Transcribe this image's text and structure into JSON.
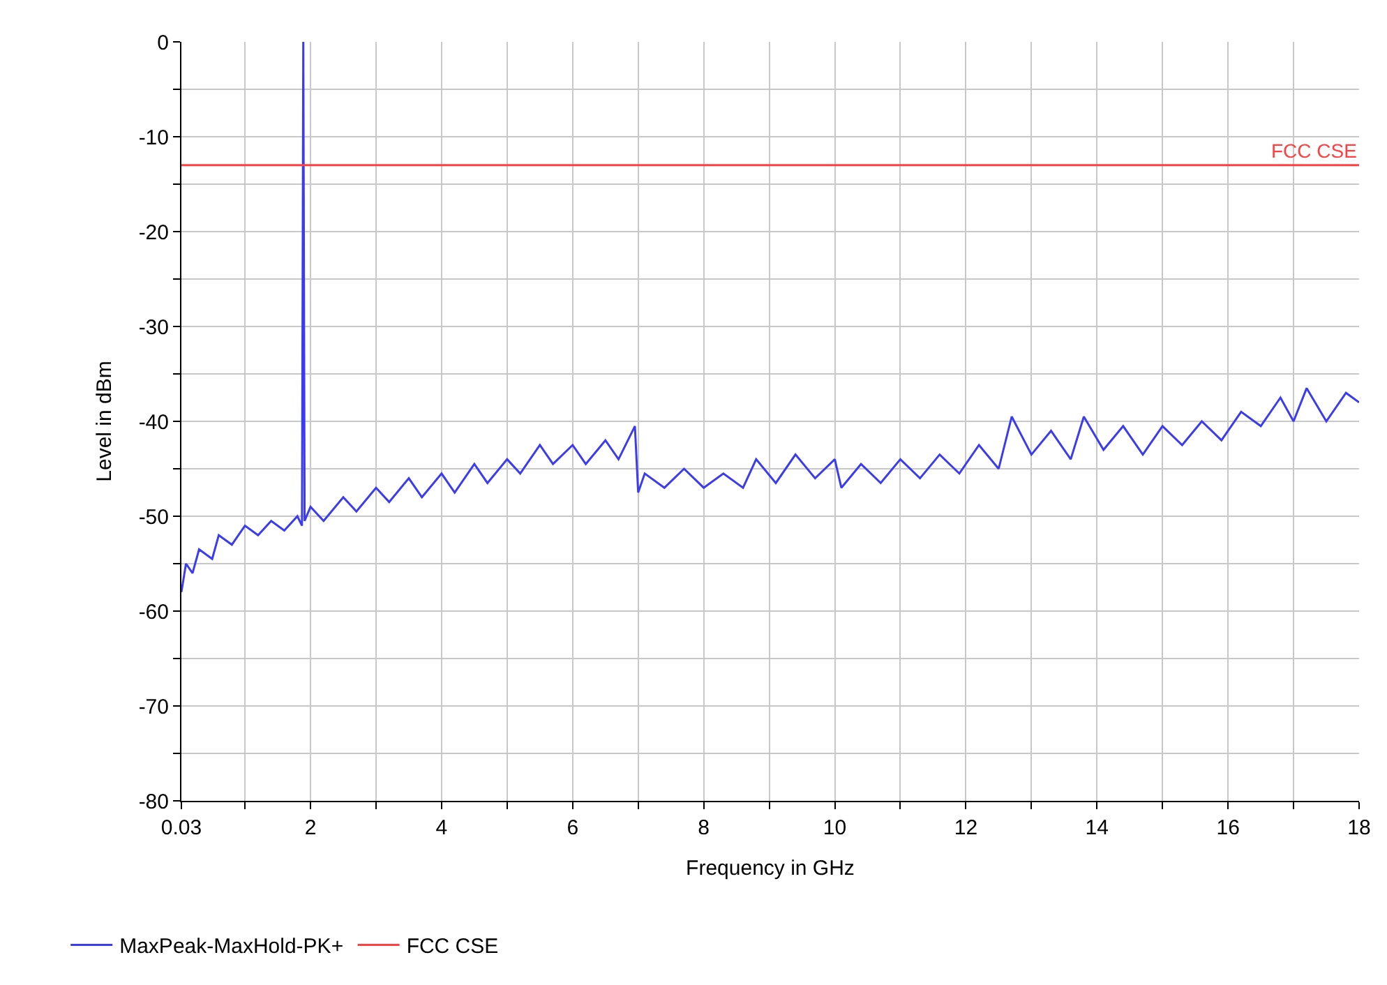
{
  "chart_data": {
    "type": "line",
    "xlabel": "Frequency in GHz",
    "ylabel": "Level in dBm",
    "xlim": [
      0.03,
      18
    ],
    "ylim": [
      -80,
      0
    ],
    "xticks": [
      0.03,
      {
        "value": 1,
        "label": null
      },
      2,
      {
        "value": 3,
        "label": null
      },
      4,
      {
        "value": 5,
        "label": null
      },
      6,
      {
        "value": 7,
        "label": null
      },
      8,
      {
        "value": 9,
        "label": null
      },
      10,
      {
        "value": 11,
        "label": null
      },
      12,
      {
        "value": 13,
        "label": null
      },
      14,
      {
        "value": 15,
        "label": null
      },
      16,
      {
        "value": 17,
        "label": null
      },
      18
    ],
    "yticks": [
      -80,
      {
        "value": -75,
        "label": null
      },
      -70,
      {
        "value": -65,
        "label": null
      },
      -60,
      {
        "value": -55,
        "label": null
      },
      -50,
      {
        "value": -45,
        "label": null
      },
      -40,
      {
        "value": -35,
        "label": null
      },
      -30,
      {
        "value": -25,
        "label": null
      },
      -20,
      {
        "value": -15,
        "label": null
      },
      -10,
      {
        "value": -5,
        "label": null
      },
      0
    ],
    "grid": true,
    "legend": "bottom",
    "marker": "none",
    "line_style": "solid",
    "series": [
      {
        "name": "MaxPeak-MaxHold-PK+",
        "color": "#3b3bf0",
        "x": [
          0.03,
          0.1,
          0.2,
          0.3,
          0.5,
          0.6,
          0.8,
          1.0,
          1.2,
          1.4,
          1.6,
          1.8,
          1.87,
          1.89,
          1.91,
          2.0,
          2.2,
          2.5,
          2.7,
          3.0,
          3.2,
          3.5,
          3.7,
          4.0,
          4.2,
          4.5,
          4.7,
          5.0,
          5.2,
          5.5,
          5.7,
          6.0,
          6.2,
          6.5,
          6.7,
          6.95,
          7.0,
          7.1,
          7.4,
          7.7,
          8.0,
          8.3,
          8.6,
          8.8,
          9.1,
          9.4,
          9.7,
          10.0,
          10.1,
          10.4,
          10.7,
          11.0,
          11.3,
          11.6,
          11.9,
          12.2,
          12.5,
          12.7,
          13.0,
          13.3,
          13.6,
          13.8,
          14.1,
          14.4,
          14.7,
          15.0,
          15.3,
          15.6,
          15.9,
          16.2,
          16.5,
          16.8,
          17.0,
          17.2,
          17.5,
          17.8,
          18.0
        ],
        "values": [
          -58,
          -55,
          -56,
          -53.5,
          -54.5,
          -52,
          -53,
          -51,
          -52,
          -50.5,
          -51.5,
          -50,
          -51,
          0,
          -50.5,
          -49,
          -50.5,
          -48,
          -49.5,
          -47,
          -48.5,
          -46,
          -48,
          -45.5,
          -47.5,
          -44.5,
          -46.5,
          -44,
          -45.5,
          -42.5,
          -44.5,
          -42.5,
          -44.5,
          -42,
          -44,
          -40.5,
          -47.5,
          -45.5,
          -47,
          -45,
          -47,
          -45.5,
          -47,
          -44,
          -46.5,
          -43.5,
          -46,
          -44,
          -47,
          -44.5,
          -46.5,
          -44,
          -46,
          -43.5,
          -45.5,
          -42.5,
          -45,
          -39.5,
          -43.5,
          -41,
          -44,
          -39.5,
          -43,
          -40.5,
          -43.5,
          -40.5,
          -42.5,
          -40,
          -42,
          -39,
          -40.5,
          -37.5,
          -40,
          -36.5,
          -40,
          -37,
          -38
        ]
      },
      {
        "name": "FCC CSE",
        "color": "#ff4040",
        "x": [
          0.03,
          18
        ],
        "values": [
          -13,
          -13
        ]
      }
    ],
    "annotations": [
      {
        "text": "FCC CSE",
        "x": 18,
        "y": -13
      }
    ]
  }
}
